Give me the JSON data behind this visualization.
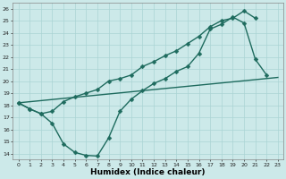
{
  "line1_x": [
    0,
    1,
    2,
    3,
    4,
    5,
    6,
    7,
    8,
    9,
    10,
    11,
    12,
    13,
    14,
    15,
    16,
    17,
    18,
    19,
    20,
    21,
    22
  ],
  "line1_y": [
    18.2,
    17.7,
    17.3,
    16.5,
    14.8,
    14.1,
    13.85,
    13.8,
    15.3,
    17.5,
    18.5,
    19.2,
    19.8,
    20.2,
    20.8,
    21.2,
    22.3,
    24.3,
    24.7,
    25.3,
    24.8,
    21.8,
    20.5
  ],
  "line2_x": [
    0,
    1,
    2,
    3,
    4,
    5,
    6,
    7,
    8,
    9,
    10,
    11,
    12,
    13,
    14,
    15,
    16,
    17,
    18,
    19,
    20,
    21
  ],
  "line2_y": [
    18.2,
    17.7,
    17.3,
    17.5,
    18.3,
    18.7,
    19.0,
    19.3,
    20.0,
    20.2,
    20.5,
    21.2,
    21.6,
    22.1,
    22.5,
    23.1,
    23.7,
    24.5,
    25.0,
    25.2,
    25.8,
    25.2
  ],
  "line3_x": [
    0,
    23
  ],
  "line3_y": [
    18.2,
    20.3
  ],
  "bg_color": "#cce9e9",
  "line_color": "#1e6b5e",
  "grid_color": "#aad4d4",
  "xlabel": "Humidex (Indice chaleur)",
  "xlim": [
    -0.5,
    23.5
  ],
  "ylim": [
    13.5,
    26.5
  ],
  "xticks": [
    0,
    1,
    2,
    3,
    4,
    5,
    6,
    7,
    8,
    9,
    10,
    11,
    12,
    13,
    14,
    15,
    16,
    17,
    18,
    19,
    20,
    21,
    22,
    23
  ],
  "yticks": [
    14,
    15,
    16,
    17,
    18,
    19,
    20,
    21,
    22,
    23,
    24,
    25,
    26
  ],
  "markersize": 2.5,
  "linewidth": 1.0
}
